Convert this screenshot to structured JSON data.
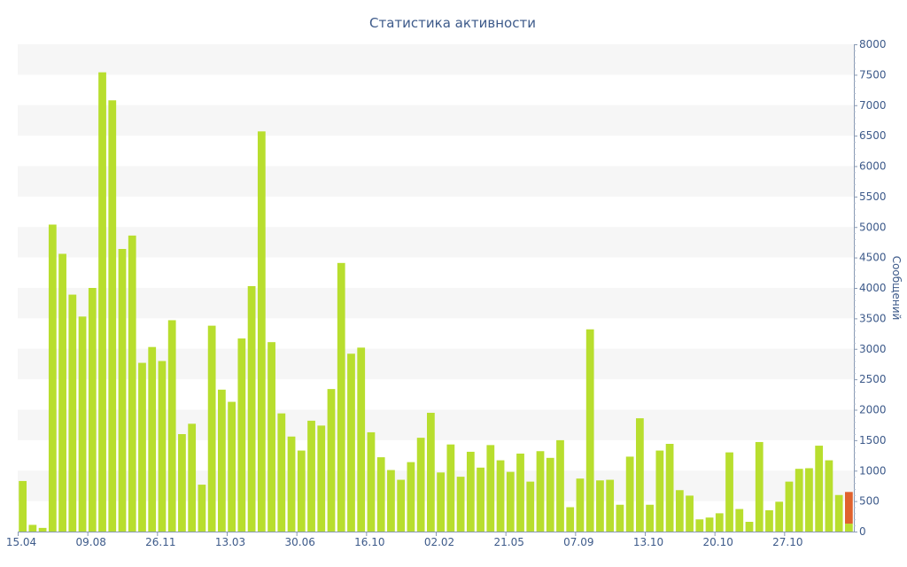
{
  "chart_data": {
    "type": "bar",
    "title": "Статистика активности",
    "ylabel": "Сообщений",
    "xlabel": "",
    "ylim": [
      0,
      8000
    ],
    "y_ticks": [
      0,
      500,
      1000,
      1500,
      2000,
      2500,
      3000,
      3500,
      4000,
      4500,
      5000,
      5500,
      6000,
      6500,
      7000,
      7500,
      8000
    ],
    "x_tick_labels": [
      "15.04",
      "09.08",
      "26.11",
      "13.03",
      "30.06",
      "16.10",
      "02.02",
      "21.05",
      "07.09",
      "13.10",
      "20.10",
      "27.10"
    ],
    "x_tick_label_bar_index": [
      0,
      7,
      14,
      21,
      28,
      35,
      42,
      49,
      56,
      63,
      70,
      77
    ],
    "grid": "horizontal bands",
    "y_axis_side": "right",
    "colors": {
      "bar": "#b8de2e",
      "highlight": "#e0622d",
      "axis_text": "#3d5a8a",
      "title": "#3d5a8a",
      "band": "#f6f6f6"
    },
    "series": [
      {
        "values": [
          830,
          110,
          60,
          5040,
          4560,
          3890,
          3530,
          4000,
          7540,
          7080,
          4640,
          4860,
          2770,
          3030,
          2800,
          3470,
          1600,
          1770,
          770,
          3380,
          2330,
          2130,
          3170,
          4030,
          6570,
          3110,
          1940,
          1560,
          1330,
          1820,
          1740,
          2340,
          4410,
          2920,
          3020,
          1630,
          1220,
          1010,
          850,
          1140,
          1540,
          1950,
          970,
          1430,
          900,
          1310,
          1050,
          1420,
          1170,
          980,
          1280,
          820,
          1320,
          1210,
          1500,
          400,
          870,
          3320,
          840,
          850,
          440,
          1230,
          1860,
          440,
          1330,
          1440,
          680,
          590,
          200,
          230,
          300,
          1300,
          370,
          160,
          1470,
          350,
          490,
          820,
          1030,
          1040,
          1410,
          1170,
          600,
          130
        ]
      }
    ],
    "last_bar_highlight_value": 650
  }
}
